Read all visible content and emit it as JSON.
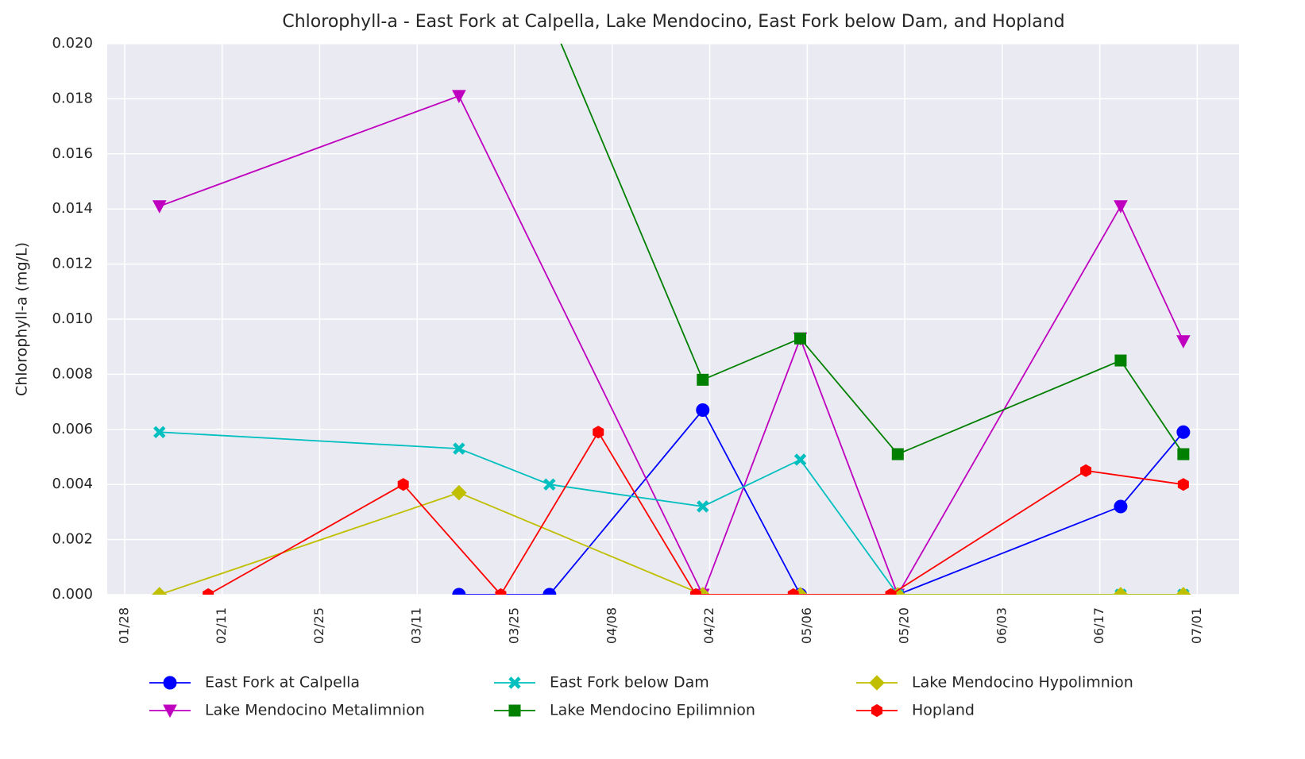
{
  "chart_data": {
    "type": "line",
    "title": "Chlorophyll-a - East Fork at Calpella, Lake Mendocino, East Fork below Dam, and Hopland",
    "y_label": "Chlorophyll-a (mg/L)",
    "xlim": [
      25.5,
      188
    ],
    "xticks": [
      {
        "value": 28,
        "label": "01/28"
      },
      {
        "value": 42,
        "label": "02/11"
      },
      {
        "value": 56,
        "label": "02/25"
      },
      {
        "value": 70,
        "label": "03/11"
      },
      {
        "value": 84,
        "label": "03/25"
      },
      {
        "value": 98,
        "label": "04/08"
      },
      {
        "value": 112,
        "label": "04/22"
      },
      {
        "value": 126,
        "label": "05/06"
      },
      {
        "value": 140,
        "label": "05/20"
      },
      {
        "value": 154,
        "label": "06/03"
      },
      {
        "value": 168,
        "label": "06/17"
      },
      {
        "value": 182,
        "label": "07/01"
      }
    ],
    "ylim": [
      0,
      0.02
    ],
    "yticks": [
      {
        "value": 0,
        "label": "0.000"
      },
      {
        "value": 0.002,
        "label": "0.002"
      },
      {
        "value": 0.004,
        "label": "0.004"
      },
      {
        "value": 0.006,
        "label": "0.006"
      },
      {
        "value": 0.008,
        "label": "0.008"
      },
      {
        "value": 0.01,
        "label": "0.010"
      },
      {
        "value": 0.012,
        "label": "0.012"
      },
      {
        "value": 0.014,
        "label": "0.014"
      },
      {
        "value": 0.016,
        "label": "0.016"
      },
      {
        "value": 0.018,
        "label": "0.018"
      },
      {
        "value": 0.02,
        "label": "0.020"
      }
    ],
    "grid": true,
    "series": [
      {
        "name": "East Fork at Calpella",
        "color": "#0000ff",
        "marker": "circle",
        "x": [
          76,
          89,
          111,
          125,
          139,
          171,
          180
        ],
        "values": [
          0,
          0,
          0.0067,
          0,
          0,
          0.0032,
          0.0059
        ]
      },
      {
        "name": "Lake Mendocino Metalimnion",
        "color": "#bf00bf",
        "marker": "triangle-down",
        "x": [
          33,
          76,
          111,
          125,
          139,
          171,
          180
        ],
        "values": [
          0.0141,
          0.0181,
          0,
          0.0093,
          0,
          0.0141,
          0.0092
        ]
      },
      {
        "name": "East Fork below Dam",
        "color": "#00bfbf",
        "marker": "x",
        "x": [
          33,
          76,
          89,
          111,
          125,
          139,
          171,
          180
        ],
        "values": [
          0.0059,
          0.0053,
          0.004,
          0.0032,
          0.0049,
          0,
          0,
          0
        ]
      },
      {
        "name": "Lake Mendocino Epilimnion",
        "color": "#008000",
        "marker": "square",
        "x": [
          89,
          111,
          125,
          139,
          171,
          180
        ],
        "values": [
          0.021,
          0.0078,
          0.0093,
          0.0051,
          0.0085,
          0.0051
        ]
      },
      {
        "name": "Lake Mendocino Hypolimnion",
        "color": "#bfbf00",
        "marker": "diamond",
        "x": [
          33,
          76,
          111,
          125,
          139,
          171,
          180
        ],
        "values": [
          0,
          0.0037,
          0,
          0,
          0,
          0,
          0
        ]
      },
      {
        "name": "Hopland",
        "color": "#ff0000",
        "marker": "hexagon",
        "x": [
          40,
          68,
          82,
          96,
          110,
          124,
          138,
          166,
          180
        ],
        "values": [
          0,
          0.004,
          0,
          0.0059,
          0,
          0,
          0,
          0.0045,
          0.004
        ]
      }
    ]
  }
}
